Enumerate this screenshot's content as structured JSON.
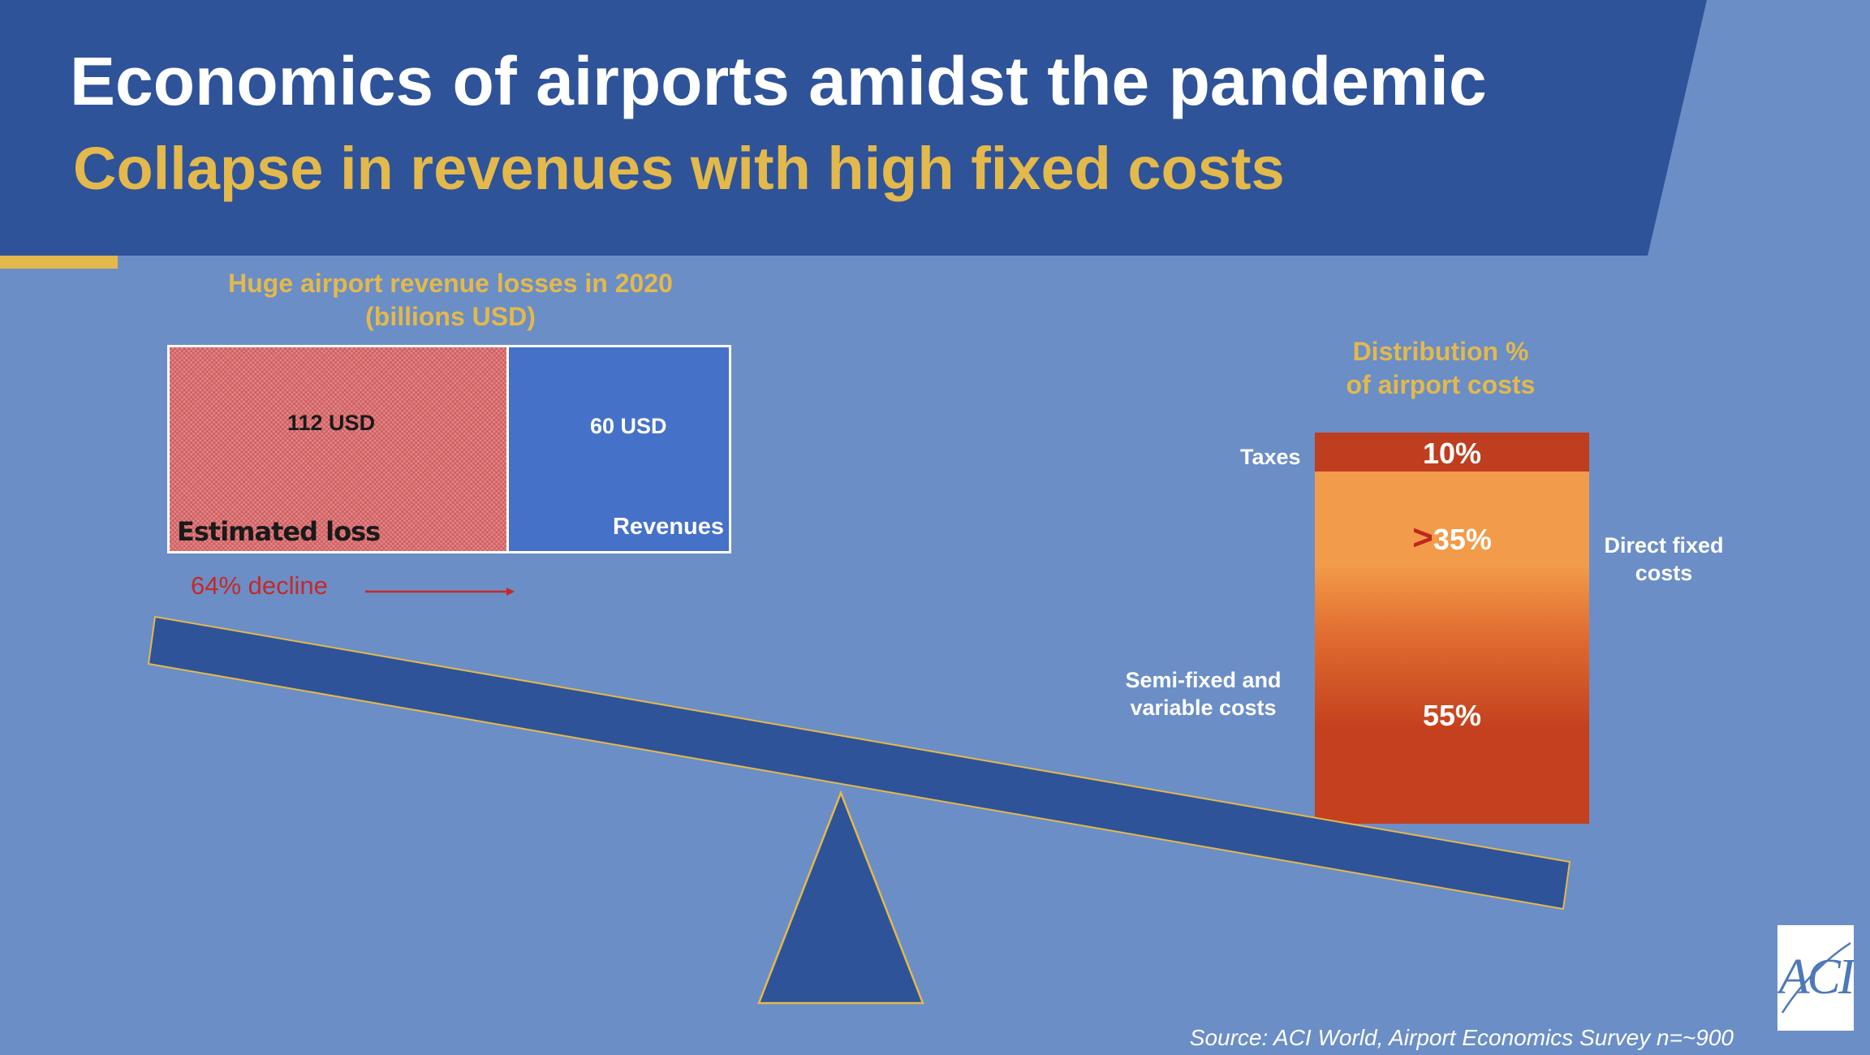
{
  "header": {
    "title": "Economics of airports amidst the pandemic",
    "subtitle": "Collapse in revenues with high fixed costs"
  },
  "revenue_panel": {
    "heading_line1": "Huge airport revenue losses in 2020",
    "heading_line2": "(billions USD)",
    "loss": {
      "amount": "112 USD",
      "label": "Estimated loss",
      "value": 112
    },
    "revenue": {
      "amount": "60 USD",
      "label": "Revenues",
      "value": 60
    },
    "decline_text": "64% decline"
  },
  "cost_panel": {
    "heading_line1": "Distribution %",
    "heading_line2": "of airport costs",
    "taxes": {
      "label": "Taxes",
      "value_text": "10%",
      "share": 10
    },
    "direct": {
      "label_line1": "Direct fixed",
      "label_line2": "costs",
      "prefix": ">",
      "value_text": "35%",
      "share": 35
    },
    "semi": {
      "label_line1": "Semi-fixed and",
      "label_line2": "variable costs",
      "value_text": "55%",
      "share": 55
    }
  },
  "colors": {
    "background": "#6b8ec6",
    "header_band": "#2f5399",
    "accent_gold": "#e3b94c",
    "seesaw": "#2f5399",
    "loss_red": "#c62828",
    "revenue_blue": "#4572c8",
    "taxes": "#bf3e1f",
    "direct": "#f29b4a",
    "semi": "#c4401e"
  },
  "footer": {
    "source": "Source: ACI World, Airport Economics Survey n=~900",
    "logo_text": "ACI"
  }
}
